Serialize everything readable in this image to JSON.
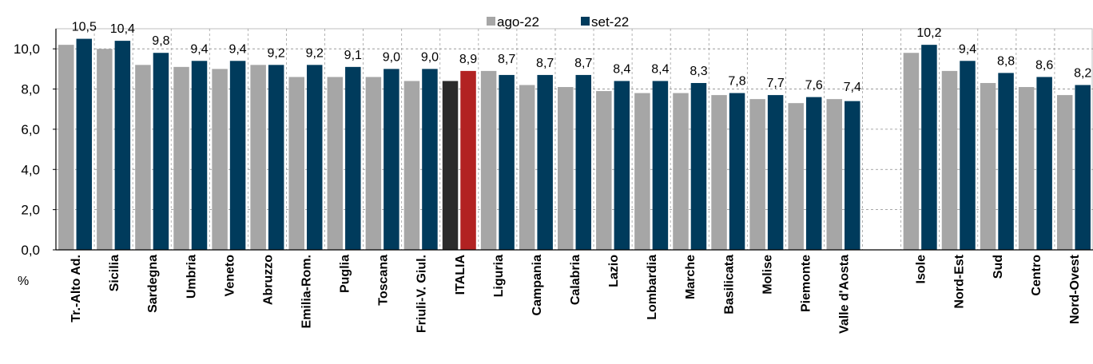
{
  "chart_data": {
    "type": "bar",
    "unit_label": "%",
    "categories": [
      "Tr.-Alto Ad.",
      "Sicilia",
      "Sardegna",
      "Umbria",
      "Veneto",
      "Abruzzo",
      "Emilia-Rom.",
      "Puglia",
      "Toscana",
      "Friuli-V. Giul.",
      "ITALIA",
      "Liguria",
      "Campania",
      "Calabria",
      "Lazio",
      "Lombardia",
      "Marche",
      "Basilicata",
      "Molise",
      "Piemonte",
      "Valle d'Aosta",
      "",
      "Isole",
      "Nord-Est",
      "Sud",
      "Centro",
      "Nord-Ovest"
    ],
    "series": [
      {
        "name": "ago-22",
        "color": "#a6a6a6",
        "values": [
          10.2,
          10.0,
          9.2,
          9.1,
          9.0,
          9.2,
          8.6,
          8.6,
          8.6,
          8.4,
          8.4,
          8.9,
          8.2,
          8.1,
          7.9,
          7.8,
          7.8,
          7.7,
          7.5,
          7.3,
          7.5,
          null,
          9.8,
          8.9,
          8.3,
          8.1,
          7.7
        ]
      },
      {
        "name": "set-22",
        "color": "#003b5c",
        "values": [
          10.5,
          10.4,
          9.8,
          9.4,
          9.4,
          9.2,
          9.2,
          9.1,
          9.0,
          9.0,
          8.9,
          8.7,
          8.7,
          8.7,
          8.4,
          8.4,
          8.3,
          7.8,
          7.7,
          7.6,
          7.4,
          null,
          10.2,
          9.4,
          8.8,
          8.6,
          8.2
        ]
      }
    ],
    "data_labels": [
      "10,5",
      "10,4",
      "9,8",
      "9,4",
      "9,4",
      "9,2",
      "9,2",
      "9,1",
      "9,0",
      "9,0",
      "8,9",
      "8,7",
      "8,7",
      "8,7",
      "8,4",
      "8,4",
      "8,3",
      "7,8",
      "7,7",
      "7,6",
      "7,4",
      "",
      "10,2",
      "9,4",
      "8,8",
      "8,6",
      "8,2"
    ],
    "y_ticks": [
      "0,0",
      "2,0",
      "4,0",
      "6,0",
      "8,0",
      "10,0"
    ],
    "ylim": [
      0,
      11
    ],
    "highlight": {
      "category": "ITALIA",
      "ago_color": "#2b2b2b",
      "set_color": "#b22222"
    },
    "grid": true,
    "legend_position": "top-center"
  }
}
